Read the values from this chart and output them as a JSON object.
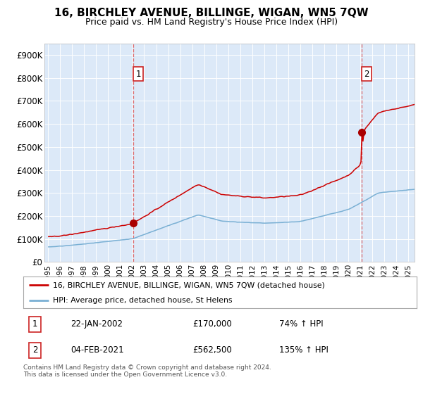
{
  "title": "16, BIRCHLEY AVENUE, BILLINGE, WIGAN, WN5 7QW",
  "subtitle": "Price paid vs. HM Land Registry's House Price Index (HPI)",
  "bg_color": "#dce9f8",
  "fig_bg_color": "#ffffff",
  "hpi_color": "#7ab0d4",
  "price_color": "#cc0000",
  "marker_color": "#aa0000",
  "vline_color": "#e06060",
  "sale1_date_num": 2002.09,
  "sale1_price": 170000,
  "sale2_date_num": 2021.1,
  "sale2_price": 562500,
  "legend_line1": "16, BIRCHLEY AVENUE, BILLINGE, WIGAN, WN5 7QW (detached house)",
  "legend_line2": "HPI: Average price, detached house, St Helens",
  "note1_num": "1",
  "note1_date": "22-JAN-2002",
  "note1_price": "£170,000",
  "note1_hpi": "74% ↑ HPI",
  "note2_num": "2",
  "note2_date": "04-FEB-2021",
  "note2_price": "£562,500",
  "note2_hpi": "135% ↑ HPI",
  "footer": "Contains HM Land Registry data © Crown copyright and database right 2024.\nThis data is licensed under the Open Government Licence v3.0.",
  "ylim_max": 950000,
  "yticks": [
    0,
    100000,
    200000,
    300000,
    400000,
    500000,
    600000,
    700000,
    800000,
    900000
  ],
  "ytick_labels": [
    "£0",
    "£100K",
    "£200K",
    "£300K",
    "£400K",
    "£500K",
    "£600K",
    "£700K",
    "£800K",
    "£900K"
  ],
  "xmin": 1994.7,
  "xmax": 2025.5,
  "xticks": [
    1995,
    1996,
    1997,
    1998,
    1999,
    2000,
    2001,
    2002,
    2003,
    2004,
    2005,
    2006,
    2007,
    2008,
    2009,
    2010,
    2011,
    2012,
    2013,
    2014,
    2015,
    2016,
    2017,
    2018,
    2019,
    2020,
    2021,
    2022,
    2023,
    2024,
    2025
  ]
}
